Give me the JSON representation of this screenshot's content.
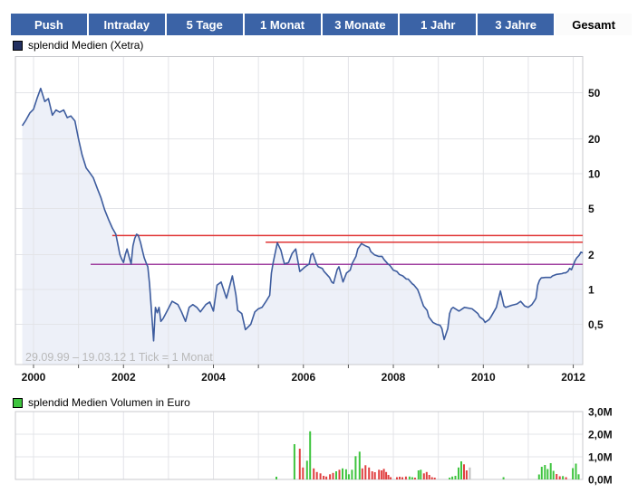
{
  "tabs": {
    "items": [
      "Push",
      "Intraday",
      "5 Tage",
      "1 Monat",
      "3 Monate",
      "1 Jahr",
      "3 Jahre",
      "Gesamt"
    ],
    "active": "Gesamt"
  },
  "colors": {
    "tab_blue": "#3B63A6",
    "tab_active_bg": "#FBFBFB",
    "price_line": "#3D5C9E",
    "price_fill": "#EDF0F8",
    "legend_price_swatch": "#223060",
    "legend_volume_swatch": "#3FC43F",
    "ref_line_red": "#E03434",
    "ref_line_purple": "#A040A0",
    "volume_up_green": "#3FC43F",
    "volume_down_red": "#E04040",
    "volume_neutral_gray": "#BDBDBD",
    "grid": "#E3E4E8",
    "plot_border": "#C9CACE",
    "tick": "#555555",
    "watermark_gray": "#B9B9B9"
  },
  "chart_data": [
    {
      "type": "line",
      "name": "price-chart",
      "legend": "splendid Medien (Xetra)",
      "footnote": "29.09.99 – 19.03.12   1 Tick = 1 Monat",
      "scale": "log",
      "x_range": [
        1999.5,
        2012.25
      ],
      "y_ticks": [
        {
          "label": "50",
          "value": 50
        },
        {
          "label": "20",
          "value": 20
        },
        {
          "label": "10",
          "value": 10
        },
        {
          "label": "5",
          "value": 5
        },
        {
          "label": "2",
          "value": 2
        },
        {
          "label": "1",
          "value": 1
        },
        {
          "label": "0,5",
          "value": 0.5
        }
      ],
      "x_grid_years": [
        2000,
        2001,
        2002,
        2003,
        2004,
        2005,
        2006,
        2007,
        2008,
        2009,
        2010,
        2011,
        2012
      ],
      "x_labels": [
        {
          "label": "2000",
          "value": 2000
        },
        {
          "label": "2002",
          "value": 2002
        },
        {
          "label": "2004",
          "value": 2004
        },
        {
          "label": "2006",
          "value": 2006
        },
        {
          "label": "2008",
          "value": 2008
        },
        {
          "label": "2010",
          "value": 2010
        },
        {
          "label": "2012",
          "value": 2012
        }
      ],
      "ref_lines": [
        {
          "value": 2.92,
          "from": 2001.75,
          "to": 2012.21,
          "color_key": "ref_line_red"
        },
        {
          "value": 2.56,
          "from": 2005.16,
          "to": 2012.21,
          "color_key": "ref_line_red"
        },
        {
          "value": 1.65,
          "from": 2001.27,
          "to": 2012.21,
          "color_key": "ref_line_purple"
        }
      ],
      "points": [
        [
          1999.75,
          26
        ],
        [
          1999.83,
          29
        ],
        [
          1999.92,
          33.5
        ],
        [
          2000.0,
          36
        ],
        [
          2000.08,
          45
        ],
        [
          2000.16,
          54.5
        ],
        [
          2000.25,
          42
        ],
        [
          2000.33,
          44.5
        ],
        [
          2000.42,
          32
        ],
        [
          2000.5,
          35.5
        ],
        [
          2000.58,
          34
        ],
        [
          2000.67,
          35.5
        ],
        [
          2000.75,
          30.5
        ],
        [
          2000.83,
          31.5
        ],
        [
          2000.92,
          28.5
        ],
        [
          2001.0,
          20
        ],
        [
          2001.08,
          14.5
        ],
        [
          2001.17,
          11.2
        ],
        [
          2001.25,
          10.2
        ],
        [
          2001.33,
          9.2
        ],
        [
          2001.42,
          7.4
        ],
        [
          2001.5,
          6.2
        ],
        [
          2001.58,
          4.9
        ],
        [
          2001.67,
          4.0
        ],
        [
          2001.75,
          3.4
        ],
        [
          2001.83,
          3.0
        ],
        [
          2001.88,
          2.4
        ],
        [
          2001.92,
          2.0
        ],
        [
          2001.96,
          1.83
        ],
        [
          2002.0,
          1.71
        ],
        [
          2002.04,
          2.0
        ],
        [
          2002.08,
          2.24
        ],
        [
          2002.13,
          1.88
        ],
        [
          2002.17,
          1.66
        ],
        [
          2002.21,
          2.38
        ],
        [
          2002.25,
          2.77
        ],
        [
          2002.29,
          3.0
        ],
        [
          2002.33,
          2.94
        ],
        [
          2002.38,
          2.54
        ],
        [
          2002.42,
          2.18
        ],
        [
          2002.46,
          1.88
        ],
        [
          2002.5,
          1.71
        ],
        [
          2002.54,
          1.57
        ],
        [
          2002.58,
          1.12
        ],
        [
          2002.63,
          0.6
        ],
        [
          2002.67,
          0.36
        ],
        [
          2002.71,
          0.7
        ],
        [
          2002.75,
          0.63
        ],
        [
          2002.79,
          0.7
        ],
        [
          2002.83,
          0.53
        ],
        [
          2002.88,
          0.56
        ],
        [
          2002.96,
          0.64
        ],
        [
          2003.08,
          0.79
        ],
        [
          2003.21,
          0.74
        ],
        [
          2003.29,
          0.64
        ],
        [
          2003.38,
          0.53
        ],
        [
          2003.46,
          0.7
        ],
        [
          2003.54,
          0.74
        ],
        [
          2003.63,
          0.7
        ],
        [
          2003.71,
          0.64
        ],
        [
          2003.83,
          0.74
        ],
        [
          2003.92,
          0.78
        ],
        [
          2004.0,
          0.65
        ],
        [
          2004.08,
          1.09
        ],
        [
          2004.17,
          1.16
        ],
        [
          2004.29,
          0.84
        ],
        [
          2004.42,
          1.31
        ],
        [
          2004.5,
          0.9
        ],
        [
          2004.54,
          0.66
        ],
        [
          2004.63,
          0.62
        ],
        [
          2004.71,
          0.45
        ],
        [
          2004.83,
          0.5
        ],
        [
          2004.92,
          0.64
        ],
        [
          2005.0,
          0.68
        ],
        [
          2005.08,
          0.7
        ],
        [
          2005.17,
          0.79
        ],
        [
          2005.25,
          0.89
        ],
        [
          2005.29,
          1.39
        ],
        [
          2005.33,
          1.72
        ],
        [
          2005.42,
          2.53
        ],
        [
          2005.5,
          2.18
        ],
        [
          2005.54,
          1.88
        ],
        [
          2005.58,
          1.66
        ],
        [
          2005.67,
          1.71
        ],
        [
          2005.75,
          2.05
        ],
        [
          2005.83,
          2.24
        ],
        [
          2005.92,
          1.43
        ],
        [
          2006.04,
          1.57
        ],
        [
          2006.13,
          1.66
        ],
        [
          2006.17,
          1.99
        ],
        [
          2006.21,
          2.05
        ],
        [
          2006.29,
          1.66
        ],
        [
          2006.33,
          1.57
        ],
        [
          2006.42,
          1.52
        ],
        [
          2006.46,
          1.43
        ],
        [
          2006.58,
          1.27
        ],
        [
          2006.63,
          1.16
        ],
        [
          2006.67,
          1.13
        ],
        [
          2006.75,
          1.48
        ],
        [
          2006.79,
          1.57
        ],
        [
          2006.88,
          1.16
        ],
        [
          2006.96,
          1.39
        ],
        [
          2007.04,
          1.47
        ],
        [
          2007.08,
          1.66
        ],
        [
          2007.17,
          1.93
        ],
        [
          2007.21,
          2.24
        ],
        [
          2007.29,
          2.49
        ],
        [
          2007.38,
          2.38
        ],
        [
          2007.46,
          2.31
        ],
        [
          2007.5,
          2.12
        ],
        [
          2007.58,
          1.99
        ],
        [
          2007.67,
          1.93
        ],
        [
          2007.75,
          1.93
        ],
        [
          2007.79,
          1.82
        ],
        [
          2007.88,
          1.66
        ],
        [
          2007.92,
          1.62
        ],
        [
          2008.0,
          1.47
        ],
        [
          2008.08,
          1.43
        ],
        [
          2008.13,
          1.35
        ],
        [
          2008.21,
          1.31
        ],
        [
          2008.29,
          1.23
        ],
        [
          2008.33,
          1.23
        ],
        [
          2008.42,
          1.12
        ],
        [
          2008.46,
          1.09
        ],
        [
          2008.54,
          1.0
        ],
        [
          2008.58,
          0.91
        ],
        [
          2008.67,
          0.72
        ],
        [
          2008.75,
          0.66
        ],
        [
          2008.79,
          0.58
        ],
        [
          2008.88,
          0.52
        ],
        [
          2008.96,
          0.5
        ],
        [
          2009.04,
          0.49
        ],
        [
          2009.08,
          0.46
        ],
        [
          2009.13,
          0.37
        ],
        [
          2009.21,
          0.46
        ],
        [
          2009.25,
          0.62
        ],
        [
          2009.29,
          0.68
        ],
        [
          2009.33,
          0.7
        ],
        [
          2009.46,
          0.65
        ],
        [
          2009.58,
          0.7
        ],
        [
          2009.75,
          0.68
        ],
        [
          2009.88,
          0.62
        ],
        [
          2009.92,
          0.58
        ],
        [
          2010.0,
          0.55
        ],
        [
          2010.04,
          0.52
        ],
        [
          2010.13,
          0.55
        ],
        [
          2010.17,
          0.58
        ],
        [
          2010.29,
          0.7
        ],
        [
          2010.33,
          0.81
        ],
        [
          2010.38,
          0.97
        ],
        [
          2010.42,
          0.84
        ],
        [
          2010.46,
          0.72
        ],
        [
          2010.5,
          0.7
        ],
        [
          2010.63,
          0.73
        ],
        [
          2010.75,
          0.75
        ],
        [
          2010.83,
          0.79
        ],
        [
          2010.92,
          0.72
        ],
        [
          2011.0,
          0.7
        ],
        [
          2011.08,
          0.74
        ],
        [
          2011.13,
          0.79
        ],
        [
          2011.17,
          0.84
        ],
        [
          2011.21,
          1.09
        ],
        [
          2011.25,
          1.2
        ],
        [
          2011.29,
          1.26
        ],
        [
          2011.38,
          1.27
        ],
        [
          2011.5,
          1.27
        ],
        [
          2011.54,
          1.31
        ],
        [
          2011.63,
          1.35
        ],
        [
          2011.75,
          1.37
        ],
        [
          2011.79,
          1.39
        ],
        [
          2011.83,
          1.39
        ],
        [
          2011.88,
          1.43
        ],
        [
          2011.92,
          1.52
        ],
        [
          2011.96,
          1.48
        ],
        [
          2012.0,
          1.62
        ],
        [
          2012.04,
          1.77
        ],
        [
          2012.08,
          1.88
        ],
        [
          2012.13,
          1.97
        ],
        [
          2012.17,
          2.1
        ],
        [
          2012.21,
          2.07
        ]
      ]
    },
    {
      "type": "bar",
      "name": "volume-chart",
      "legend": "splendid Medien Volumen in Euro",
      "unit": "Mio. Euro",
      "y_ticks": [
        {
          "label": "3,0M",
          "value": 3
        },
        {
          "label": "2,0M",
          "value": 2
        },
        {
          "label": "1,0M",
          "value": 1
        },
        {
          "label": "0,0M",
          "value": 0
        }
      ],
      "x_grid_years": [
        2000,
        2001,
        2002,
        2003,
        2004,
        2005,
        2006,
        2007,
        2008,
        2009,
        2010,
        2011,
        2012
      ],
      "bars": [
        [
          2005.4,
          0.12,
          "g"
        ],
        [
          2005.8,
          1.56,
          "g"
        ],
        [
          2005.92,
          1.36,
          "r"
        ],
        [
          2005.99,
          0.53,
          "r"
        ],
        [
          2006.08,
          0.83,
          "g"
        ],
        [
          2006.15,
          2.13,
          "g"
        ],
        [
          2006.23,
          0.49,
          "r"
        ],
        [
          2006.3,
          0.33,
          "r"
        ],
        [
          2006.38,
          0.27,
          "r"
        ],
        [
          2006.45,
          0.16,
          "r"
        ],
        [
          2006.51,
          0.13,
          "r"
        ],
        [
          2006.59,
          0.23,
          "r"
        ],
        [
          2006.66,
          0.29,
          "r"
        ],
        [
          2006.73,
          0.36,
          "g"
        ],
        [
          2006.8,
          0.43,
          "r"
        ],
        [
          2006.87,
          0.49,
          "g"
        ],
        [
          2006.95,
          0.45,
          "g"
        ],
        [
          2007.01,
          0.23,
          "g"
        ],
        [
          2007.08,
          0.43,
          "g"
        ],
        [
          2007.16,
          1.03,
          "g"
        ],
        [
          2007.25,
          1.23,
          "g"
        ],
        [
          2007.31,
          0.49,
          "r"
        ],
        [
          2007.38,
          0.63,
          "r"
        ],
        [
          2007.46,
          0.53,
          "r"
        ],
        [
          2007.53,
          0.36,
          "r"
        ],
        [
          2007.59,
          0.32,
          "r"
        ],
        [
          2007.68,
          0.43,
          "r"
        ],
        [
          2007.74,
          0.4,
          "r"
        ],
        [
          2007.79,
          0.47,
          "r"
        ],
        [
          2007.84,
          0.33,
          "r"
        ],
        [
          2007.89,
          0.2,
          "r"
        ],
        [
          2007.94,
          0.1,
          "r"
        ],
        [
          2008.08,
          0.1,
          "r"
        ],
        [
          2008.14,
          0.12,
          "r"
        ],
        [
          2008.2,
          0.1,
          "r"
        ],
        [
          2008.28,
          0.13,
          "r"
        ],
        [
          2008.36,
          0.13,
          "g"
        ],
        [
          2008.42,
          0.1,
          "g"
        ],
        [
          2008.48,
          0.08,
          "r"
        ],
        [
          2008.56,
          0.4,
          "g"
        ],
        [
          2008.61,
          0.43,
          "g"
        ],
        [
          2008.68,
          0.27,
          "r"
        ],
        [
          2008.74,
          0.33,
          "r"
        ],
        [
          2008.8,
          0.2,
          "r"
        ],
        [
          2008.86,
          0.1,
          "r"
        ],
        [
          2008.92,
          0.08,
          "r"
        ],
        [
          2009.25,
          0.08,
          "g"
        ],
        [
          2009.31,
          0.13,
          "g"
        ],
        [
          2009.38,
          0.16,
          "g"
        ],
        [
          2009.45,
          0.53,
          "g"
        ],
        [
          2009.51,
          0.8,
          "g"
        ],
        [
          2009.57,
          0.67,
          "r"
        ],
        [
          2009.63,
          0.4,
          "r"
        ],
        [
          2009.7,
          0.53,
          "x"
        ],
        [
          2010.45,
          0.1,
          "g"
        ],
        [
          2011.24,
          0.22,
          "g"
        ],
        [
          2011.3,
          0.56,
          "g"
        ],
        [
          2011.37,
          0.64,
          "g"
        ],
        [
          2011.43,
          0.46,
          "g"
        ],
        [
          2011.5,
          0.72,
          "g"
        ],
        [
          2011.56,
          0.38,
          "g"
        ],
        [
          2011.63,
          0.24,
          "r"
        ],
        [
          2011.7,
          0.14,
          "r"
        ],
        [
          2011.77,
          0.15,
          "g"
        ],
        [
          2011.84,
          0.1,
          "r"
        ],
        [
          2011.99,
          0.5,
          "g"
        ],
        [
          2012.06,
          0.7,
          "g"
        ],
        [
          2012.12,
          0.23,
          "g"
        ]
      ]
    }
  ]
}
